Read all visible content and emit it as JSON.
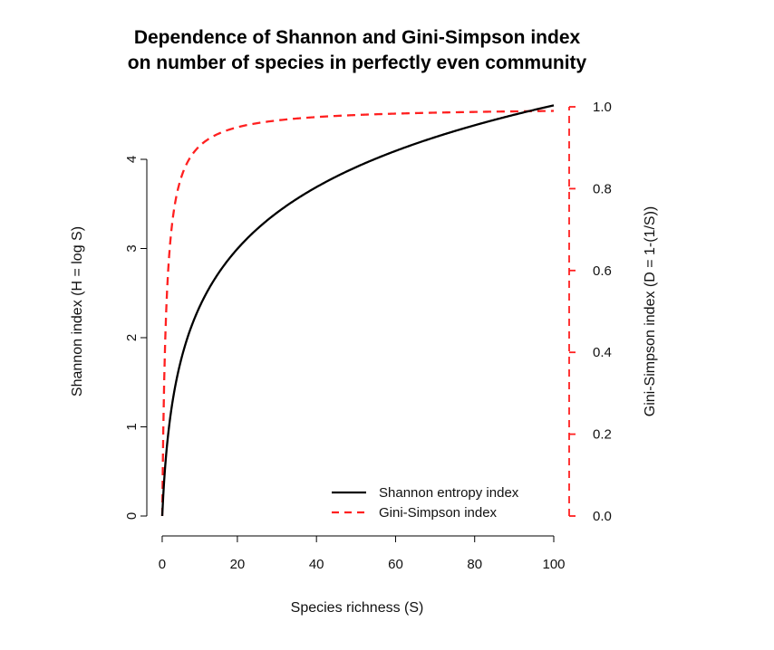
{
  "chart_data": {
    "type": "line",
    "title": "Dependence of Shannon and Gini-Simpson index",
    "subtitle": "on number of species in perfectly even community",
    "xlabel": "Species richness (S)",
    "ylabel_left": "Shannon index (H = log S)",
    "ylabel_right": "Gini-Simpson index (D = 1-(1/S))",
    "xlim": [
      1,
      100
    ],
    "ylim_left": [
      0,
      4.61
    ],
    "ylim_right": [
      0,
      1.0
    ],
    "x_ticks": [
      "0",
      "20",
      "40",
      "60",
      "80",
      "100"
    ],
    "y_left_ticks": [
      "0",
      "1",
      "2",
      "3",
      "4"
    ],
    "y_right_ticks": [
      "0.0",
      "0.2",
      "0.4",
      "0.6",
      "0.8",
      "1.0"
    ],
    "grid": false,
    "legend_position": "bottom-right",
    "series": [
      {
        "name": "Shannon entropy index",
        "axis": "left",
        "color": "#000000",
        "style": "solid",
        "x": [
          1,
          2,
          3,
          5,
          10,
          20,
          30,
          40,
          50,
          60,
          70,
          80,
          90,
          100
        ],
        "values": [
          0,
          0.69,
          1.1,
          1.61,
          2.3,
          3.0,
          3.4,
          3.69,
          3.91,
          4.09,
          4.25,
          4.38,
          4.5,
          4.61
        ]
      },
      {
        "name": "Gini-Simpson index",
        "axis": "right",
        "color": "#ff2020",
        "style": "dashed",
        "x": [
          1,
          2,
          3,
          5,
          10,
          20,
          30,
          40,
          50,
          60,
          70,
          80,
          90,
          100
        ],
        "values": [
          0,
          0.5,
          0.667,
          0.8,
          0.9,
          0.95,
          0.967,
          0.975,
          0.98,
          0.983,
          0.986,
          0.988,
          0.989,
          0.99
        ]
      }
    ]
  }
}
